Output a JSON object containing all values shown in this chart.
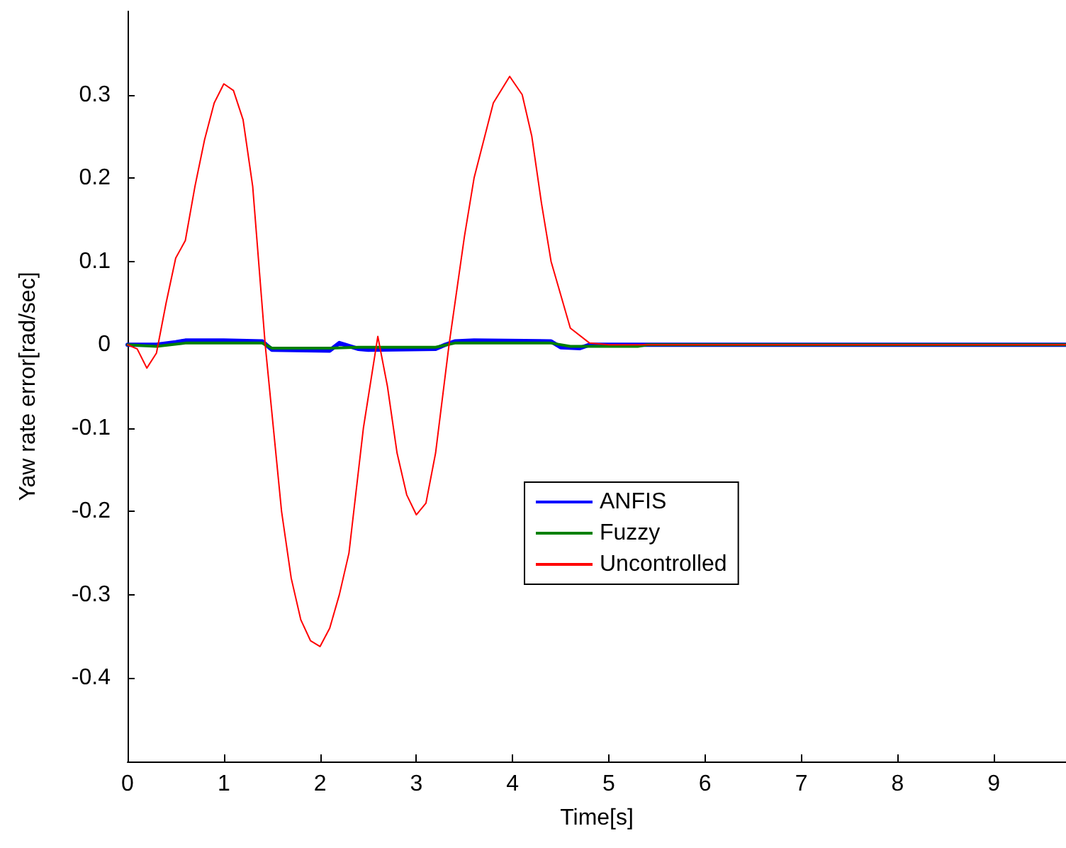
{
  "chart_data": {
    "type": "line",
    "xlabel": "Time[s]",
    "ylabel": "Yaw rate error[rad/sec]",
    "xlim": [
      0,
      9.75
    ],
    "xticks": [
      0,
      1,
      2,
      3,
      4,
      5,
      6,
      7,
      8,
      9
    ],
    "ylim": [
      -0.5,
      0.4
    ],
    "yticks": [
      -0.4,
      -0.3,
      -0.2,
      -0.1,
      0,
      0.1,
      0.2,
      0.3
    ],
    "grid": false,
    "legend": "bottom",
    "marker": "none",
    "line_style": "solid",
    "series": [
      {
        "name": "ANFIS",
        "color": "#0000ff",
        "x": [
          0,
          0.3,
          0.5,
          0.6,
          1.0,
          1.4,
          1.5,
          2.1,
          2.2,
          2.4,
          2.5,
          3.2,
          3.3,
          3.4,
          3.6,
          4.4,
          4.5,
          4.7,
          4.8,
          5.0,
          9.75
        ],
        "values": [
          0,
          0,
          0.003,
          0.005,
          0.005,
          0.004,
          -0.006,
          -0.007,
          0.002,
          -0.005,
          -0.006,
          -0.005,
          0,
          0.004,
          0.005,
          0.004,
          -0.003,
          -0.004,
          0,
          0,
          0
        ]
      },
      {
        "name": "Fuzzy",
        "color": "#008000",
        "x": [
          0,
          0.3,
          0.6,
          1.4,
          1.5,
          2.1,
          2.4,
          3.2,
          3.4,
          4.4,
          4.6,
          5.0,
          5.3,
          5.4,
          9.75
        ],
        "values": [
          0,
          -0.002,
          0.002,
          0.002,
          -0.004,
          -0.004,
          -0.003,
          -0.003,
          0.002,
          0.002,
          -0.002,
          -0.002,
          -0.002,
          0,
          0
        ]
      },
      {
        "name": "Uncontrolled",
        "color": "#ff0000",
        "x": [
          0,
          0.1,
          0.2,
          0.3,
          0.4,
          0.5,
          0.6,
          0.7,
          0.8,
          0.9,
          1.0,
          1.1,
          1.2,
          1.3,
          1.43,
          1.6,
          1.7,
          1.8,
          1.9,
          2.0,
          2.1,
          2.2,
          2.3,
          2.45,
          2.6,
          2.7,
          2.8,
          2.9,
          3.0,
          3.1,
          3.2,
          3.34,
          3.5,
          3.6,
          3.8,
          3.97,
          4.1,
          4.2,
          4.3,
          4.4,
          4.6,
          4.8,
          5.0,
          9.75
        ],
        "values": [
          0,
          -0.005,
          -0.028,
          -0.01,
          0.05,
          0.104,
          0.125,
          0.19,
          0.246,
          0.29,
          0.313,
          0.305,
          0.27,
          0.19,
          0,
          -0.2,
          -0.28,
          -0.33,
          -0.355,
          -0.362,
          -0.34,
          -0.3,
          -0.25,
          -0.1,
          0.01,
          -0.05,
          -0.13,
          -0.18,
          -0.204,
          -0.19,
          -0.13,
          0,
          0.13,
          0.2,
          0.29,
          0.322,
          0.3,
          0.25,
          0.17,
          0.1,
          0.02,
          0.002,
          0,
          0
        ]
      }
    ]
  }
}
